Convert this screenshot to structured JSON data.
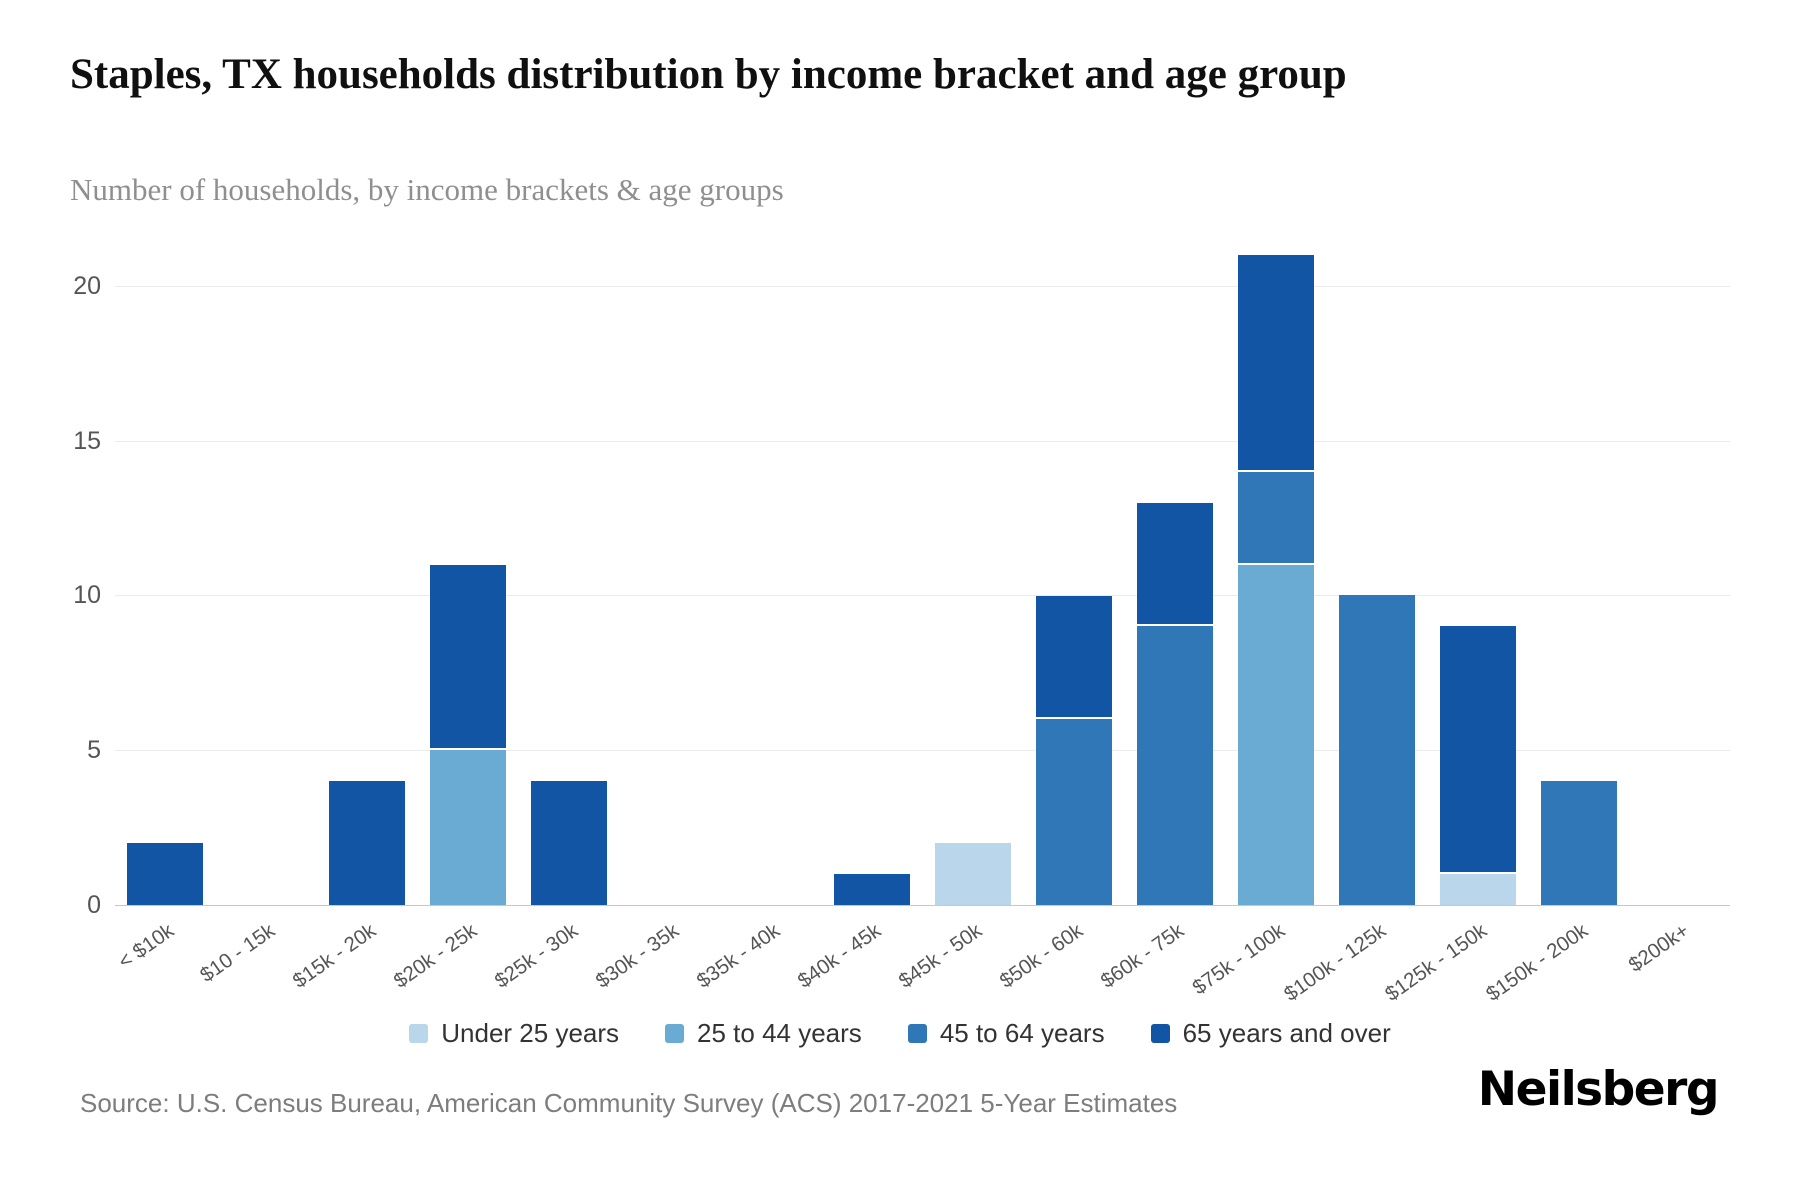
{
  "title": "Staples, TX households distribution by income bracket and age group",
  "subtitle": "Number of households, by income brackets & age groups",
  "source": "Source: U.S. Census Bureau, American Community Survey (ACS) 2017-2021 5-Year Estimates",
  "brand": "Neilsberg",
  "chart_data": {
    "type": "bar",
    "stacked": true,
    "title": "Staples, TX households distribution by income bracket and age group",
    "xlabel": "",
    "ylabel": "Number of households",
    "categories": [
      "< $10k",
      "$10 - 15k",
      "$15k - 20k",
      "$20k - 25k",
      "$25k - 30k",
      "$30k - 35k",
      "$35k - 40k",
      "$40k - 45k",
      "$45k - 50k",
      "$50k - 60k",
      "$60k - 75k",
      "$75k - 100k",
      "$100k - 125k",
      "$125k - 150k",
      "$150k - 200k",
      "$200k+"
    ],
    "series": [
      {
        "name": "Under 25 years",
        "color": "#b9d6ea",
        "values": [
          0,
          0,
          0,
          0,
          0,
          0,
          0,
          0,
          2,
          0,
          0,
          0,
          0,
          1,
          0,
          0
        ]
      },
      {
        "name": "25 to 44 years",
        "color": "#6aabd4",
        "values": [
          0,
          0,
          0,
          5,
          0,
          0,
          0,
          0,
          0,
          0,
          0,
          11,
          0,
          0,
          0,
          0
        ]
      },
      {
        "name": "45 to 64 years",
        "color": "#2f77b6",
        "values": [
          0,
          0,
          0,
          0,
          0,
          0,
          0,
          0,
          0,
          6,
          9,
          3,
          10,
          0,
          4,
          0
        ]
      },
      {
        "name": "65 years and over",
        "color": "#1355a5",
        "values": [
          2,
          0,
          4,
          6,
          4,
          0,
          0,
          1,
          0,
          4,
          4,
          7,
          0,
          8,
          0,
          0
        ]
      }
    ],
    "totals": [
      2,
      0,
      4,
      11,
      4,
      0,
      0,
      1,
      2,
      10,
      13,
      21,
      10,
      9,
      4,
      0
    ],
    "yticks": [
      0,
      5,
      10,
      15,
      20
    ],
    "ylim": [
      0,
      21
    ],
    "grid": true,
    "legend_position": "bottom"
  }
}
